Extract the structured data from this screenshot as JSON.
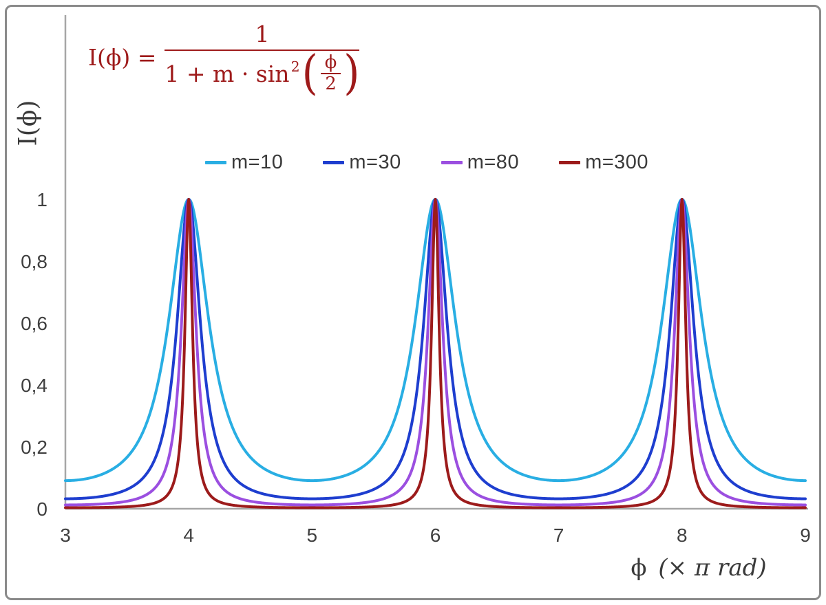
{
  "formula": {
    "lhs": "I(ϕ) =",
    "numerator": "1",
    "denominator_prefix": "1 + m · sin",
    "superscript": "2",
    "open_paren": "(",
    "inner_numerator": "ϕ",
    "inner_denominator": "2",
    "close_paren": ")"
  },
  "axis_labels": {
    "y": "I(ϕ)",
    "x_symbol": "ϕ",
    "x_unit": "(× π rad)"
  },
  "chart_data": {
    "type": "line",
    "title": "",
    "formula_text": "I(ϕ) = 1 / (1 + m·sin²(ϕ/2))",
    "function": "I(x) = 1 / (1 + m * sin(x·π/2)^2), x expressed in units of π rad",
    "xlabel": "ϕ (× π rad)",
    "ylabel": "I(ϕ)",
    "xlim": [
      3,
      9
    ],
    "ylim": [
      0,
      1
    ],
    "x_sample_step": 0.005,
    "x_ticks": {
      "values": [
        3,
        4,
        5,
        6,
        7,
        8,
        9
      ],
      "labels": [
        "3",
        "4",
        "5",
        "6",
        "7",
        "8",
        "9"
      ]
    },
    "y_ticks": {
      "values": [
        0,
        0.2,
        0.4,
        0.6,
        0.8,
        1
      ],
      "labels": [
        "0",
        "0,2",
        "0,4",
        "0,6",
        "0,8",
        "1"
      ]
    },
    "series": [
      {
        "name": "m=10",
        "m": 10,
        "color": "#29aee3"
      },
      {
        "name": "m=30",
        "m": 30,
        "color": "#1e3ecf"
      },
      {
        "name": "m=80",
        "m": 80,
        "color": "#9b4fe0"
      },
      {
        "name": "m=300",
        "m": 300,
        "color": "#9c1b1b"
      }
    ],
    "peaks_at_x": [
      4,
      6,
      8
    ],
    "peak_value": 1,
    "grid": false,
    "legend_position": "top-center",
    "axis_color": "#a6a6a6",
    "tick_label_color": "#3f3f3f",
    "formula_color": "#9e1a1a"
  }
}
